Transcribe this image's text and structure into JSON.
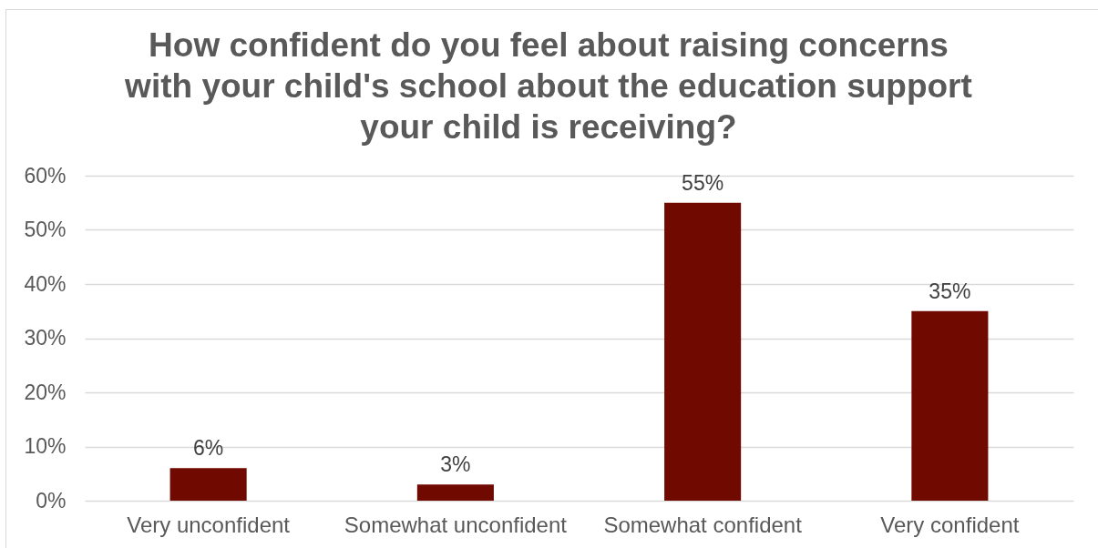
{
  "chart_data": {
    "type": "bar",
    "title": "How confident do you feel about raising concerns with your child's school about the education support your child is receiving?",
    "categories": [
      "Very unconfident",
      "Somewhat unconfident",
      "Somewhat confident",
      "Very confident"
    ],
    "values": [
      6,
      3,
      55,
      35
    ],
    "value_labels": [
      "6%",
      "3%",
      "55%",
      "35%"
    ],
    "color": "#700a00",
    "ylim": [
      0,
      60
    ],
    "yticks": [
      {
        "value": 0,
        "label": "0%"
      },
      {
        "value": 10,
        "label": "10%"
      },
      {
        "value": 20,
        "label": "20%"
      },
      {
        "value": 30,
        "label": "30%"
      },
      {
        "value": 40,
        "label": "40%"
      },
      {
        "value": 50,
        "label": "50%"
      },
      {
        "value": 60,
        "label": "60%"
      }
    ],
    "grid": "y"
  }
}
